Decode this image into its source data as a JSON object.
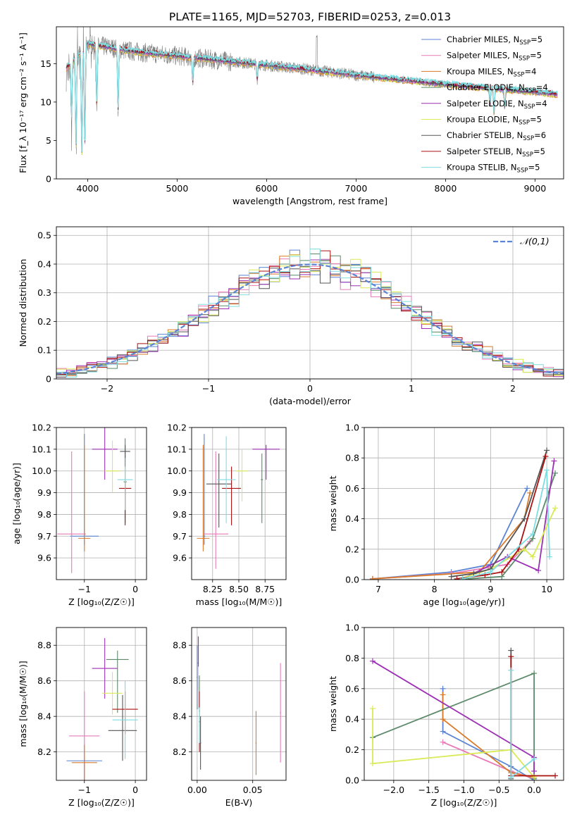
{
  "figure": {
    "title": "PLATE=1165, MJD=52703, FIBERID=0253, z=0.013"
  },
  "colors": [
    "#5b84d4",
    "#e87ab8",
    "#d97a2a",
    "#5c8a6a",
    "#9c2fb4",
    "#d9ea55",
    "#555555",
    "#aa1111",
    "#7fdce0"
  ],
  "chart_data": [
    {
      "id": "spectrum",
      "type": "line",
      "xlabel": "wavelength [Angstrom, rest frame]",
      "ylabel": "Flux [f_λ 10⁻¹⁷ erg cm⁻² s⁻¹ A⁻¹]",
      "xlim": [
        3650,
        9320
      ],
      "ylim": [
        0,
        19.8
      ],
      "xticks": [
        4000,
        5000,
        6000,
        7000,
        8000,
        9000
      ],
      "yticks": [
        0,
        5,
        10,
        15
      ],
      "grid": false,
      "legend_placement": "top-right",
      "legend": [
        {
          "name": "Chabrier MILES, N",
          "sub": "SSP",
          "tail": "=5"
        },
        {
          "name": "Salpeter MILES, N",
          "sub": "SSP",
          "tail": "=5"
        },
        {
          "name": "Kroupa MILES, N",
          "sub": "SSP",
          "tail": "=4"
        },
        {
          "name": "Chabrier ELODIE, N",
          "sub": "SSP",
          "tail": "=4"
        },
        {
          "name": "Salpeter ELODIE, N",
          "sub": "SSP",
          "tail": "=4"
        },
        {
          "name": "Kroupa ELODIE, N",
          "sub": "SSP",
          "tail": "=5"
        },
        {
          "name": "Chabrier STELIB, N",
          "sub": "SSP",
          "tail": "=6"
        },
        {
          "name": "Salpeter STELIB, N",
          "sub": "SSP",
          "tail": "=5"
        },
        {
          "name": "Kroupa STELIB, N",
          "sub": "SSP",
          "tail": "=5"
        }
      ],
      "continuum": [
        [
          3750,
          14.2
        ],
        [
          3900,
          16.2
        ],
        [
          4000,
          17.6
        ],
        [
          4200,
          17.2
        ],
        [
          4500,
          16.6
        ],
        [
          5000,
          16.0
        ],
        [
          5500,
          15.4
        ],
        [
          6000,
          14.8
        ],
        [
          6500,
          14.2
        ],
        [
          7000,
          13.5
        ],
        [
          7500,
          12.9
        ],
        [
          8000,
          12.3
        ],
        [
          8500,
          11.8
        ],
        [
          9000,
          11.3
        ],
        [
          9250,
          11.0
        ]
      ],
      "dips": [
        [
          3820,
          8.0
        ],
        [
          3870,
          4.5
        ],
        [
          3934,
          3.2
        ],
        [
          3968,
          4.3
        ],
        [
          4102,
          9.5
        ],
        [
          4340,
          9.0
        ],
        [
          5175,
          12.4
        ],
        [
          5895,
          13.0
        ],
        [
          8498,
          9.6
        ],
        [
          8542,
          8.5
        ],
        [
          8662,
          9.3
        ]
      ]
    },
    {
      "id": "residuals",
      "type": "histogram",
      "xlabel": "(data-model)/error",
      "ylabel": "Normed distribution",
      "xlim": [
        -2.5,
        2.5
      ],
      "ylim": [
        0,
        0.53
      ],
      "xticks": [
        -2,
        -1,
        0,
        1,
        2
      ],
      "yticks": [
        0,
        0.1,
        0.2,
        0.3,
        0.4,
        0.5
      ],
      "grid": true,
      "legend_placement": "top-right",
      "reference_curve": "𝒩(0,1)",
      "bin_width": 0.1
    },
    {
      "id": "age_vs_Z",
      "type": "errorbar",
      "xlabel": "Z [log₁₀(Z/Z☉)]",
      "ylabel": "age  [log₁₀(age/yr)]",
      "xlim": [
        -1.55,
        0.22
      ],
      "ylim": [
        9.5,
        10.2
      ],
      "xticks": [
        -1,
        0
      ],
      "yticks": [
        9.6,
        9.7,
        9.8,
        9.9,
        10.0,
        10.1,
        10.2
      ],
      "grid": true,
      "points": [
        [
          -1.0,
          9.7,
          0.28,
          0.04,
          0.47
        ],
        [
          -1.25,
          9.71,
          0.28,
          0.18,
          0.38
        ],
        [
          -1.0,
          9.69,
          0.12,
          0.06,
          0.43
        ],
        [
          -0.2,
          9.95,
          0.03,
          0.19,
          0.2
        ],
        [
          -0.6,
          10.1,
          0.25,
          0.14,
          0.14
        ],
        [
          -0.45,
          10.0,
          0.15,
          0.1,
          0.14
        ],
        [
          -0.2,
          10.09,
          0.1,
          0.03,
          0.03
        ],
        [
          -0.2,
          9.92,
          0.12,
          0.17,
          0.03
        ],
        [
          -0.2,
          9.96,
          0.15,
          0.14,
          0.06
        ]
      ]
    },
    {
      "id": "age_vs_mass",
      "type": "errorbar",
      "xlabel": "mass [log₁₀(M/M☉)]",
      "ylabel": "",
      "xlim": [
        8.05,
        8.95
      ],
      "ylim": [
        9.5,
        10.2
      ],
      "xticks": [
        8.25,
        8.5,
        8.75
      ],
      "xtick_labels": [
        "8.25",
        "8.50",
        "8.75"
      ],
      "yticks": [
        9.6,
        9.7,
        9.8,
        9.9,
        10.0,
        10.1,
        10.2
      ],
      "grid": true,
      "points": [
        [
          8.17,
          9.7,
          0.01,
          0.04,
          0.47
        ],
        [
          8.28,
          9.71,
          0.12,
          0.16,
          0.38
        ],
        [
          8.16,
          9.69,
          0.06,
          0.06,
          0.43
        ],
        [
          8.72,
          9.96,
          0.01,
          0.2,
          0.12
        ],
        [
          8.76,
          10.1,
          0.13,
          0.14,
          0.02
        ],
        [
          8.53,
          10.0,
          0.06,
          0.14,
          0.1
        ],
        [
          8.31,
          9.94,
          0.12,
          0.2,
          0.14
        ],
        [
          8.43,
          9.92,
          0.09,
          0.17,
          0.1
        ],
        [
          8.38,
          9.96,
          0.09,
          0.2,
          0.2
        ]
      ]
    },
    {
      "id": "weight_vs_age",
      "type": "line",
      "xlabel": "age  [log₁₀(age/yr)]",
      "ylabel": "mass weight",
      "xlim": [
        6.75,
        10.3
      ],
      "ylim": [
        0,
        1.0
      ],
      "xticks": [
        7,
        8,
        9,
        10
      ],
      "yticks": [
        0,
        0.2,
        0.4,
        0.6,
        0.8,
        1.0
      ],
      "grid": true,
      "series": [
        {
          "points": [
            [
              6.9,
              0.005
            ],
            [
              8.3,
              0.05
            ],
            [
              9.0,
              0.1
            ],
            [
              9.65,
              0.6
            ]
          ]
        },
        {
          "points": [
            [
              6.9,
              0.005
            ],
            [
              8.3,
              0.04
            ],
            [
              9.3,
              0.1
            ],
            [
              9.7,
              0.25
            ]
          ]
        },
        {
          "points": [
            [
              6.9,
              0.005
            ],
            [
              8.8,
              0.05
            ],
            [
              9.6,
              0.4
            ],
            [
              9.7,
              0.57
            ]
          ]
        },
        {
          "points": [
            [
              8.6,
              0.005
            ],
            [
              9.2,
              0.02
            ],
            [
              9.75,
              0.27
            ],
            [
              10.15,
              0.7
            ]
          ]
        },
        {
          "points": [
            [
              8.5,
              0.005
            ],
            [
              9.3,
              0.15
            ],
            [
              9.85,
              0.06
            ],
            [
              10.13,
              0.78
            ]
          ]
        },
        {
          "points": [
            [
              8.5,
              0.01
            ],
            [
              9.0,
              0.07
            ],
            [
              9.6,
              0.2
            ],
            [
              9.75,
              0.15
            ],
            [
              10.15,
              0.47
            ]
          ]
        },
        {
          "points": [
            [
              8.3,
              0.02
            ],
            [
              8.7,
              0.04
            ],
            [
              9.0,
              0.07
            ],
            [
              9.6,
              0.4
            ],
            [
              10.0,
              0.85
            ]
          ]
        },
        {
          "points": [
            [
              8.4,
              0.005
            ],
            [
              8.9,
              0.03
            ],
            [
              9.2,
              0.05
            ],
            [
              9.5,
              0.2
            ],
            [
              9.98,
              0.81
            ]
          ]
        },
        {
          "points": [
            [
              8.5,
              0.005
            ],
            [
              9.0,
              0.05
            ],
            [
              9.75,
              0.3
            ],
            [
              10.0,
              0.72
            ],
            [
              10.05,
              0.15
            ]
          ]
        }
      ]
    },
    {
      "id": "mass_vs_Z",
      "type": "errorbar",
      "xlabel": "Z [log₁₀(Z/Z☉)]",
      "ylabel": "mass [log₁₀(M/M☉)]",
      "xlim": [
        -1.55,
        0.22
      ],
      "ylim": [
        8.04,
        8.9
      ],
      "xticks": [
        -1,
        0
      ],
      "yticks": [
        8.2,
        8.4,
        8.6,
        8.8
      ],
      "grid": true,
      "points": [
        [
          -1.0,
          8.15,
          0.35,
          0.45,
          0.01
        ],
        [
          -1.0,
          8.29,
          0.3,
          0.25,
          0.25
        ],
        [
          -1.0,
          8.14,
          0.25,
          0.29,
          0.1
        ],
        [
          -0.35,
          8.72,
          0.22,
          0.3,
          0.05
        ],
        [
          -0.6,
          8.67,
          0.25,
          0.17,
          0.17
        ],
        [
          -0.45,
          8.53,
          0.2,
          0.12,
          0.12
        ],
        [
          -0.25,
          8.32,
          0.28,
          0.17,
          0.2
        ],
        [
          -0.2,
          8.44,
          0.25,
          0.14,
          0.1
        ],
        [
          -0.2,
          8.38,
          0.25,
          0.22,
          0.22
        ]
      ]
    },
    {
      "id": "mass_vs_EBV",
      "type": "errorbar",
      "xlabel": "E(B-V)",
      "ylabel": "",
      "xlim": [
        -0.005,
        0.08
      ],
      "ylim": [
        8.04,
        8.9
      ],
      "xticks": [
        0.0,
        0.05
      ],
      "xtick_labels": [
        "0.00",
        "0.05"
      ],
      "yticks": [
        8.2,
        8.4,
        8.6,
        8.8
      ],
      "grid": true,
      "points": [
        [
          0.0,
          8.62,
          0.0005,
          0.18,
          0.18
        ],
        [
          0.075,
          8.42,
          0.0005,
          0.28,
          0.28
        ],
        [
          0.053,
          8.25,
          0.0005,
          0.18,
          0.18
        ],
        [
          0.002,
          8.43,
          0.0005,
          0.2,
          0.2
        ],
        [
          0.001,
          8.7,
          0.0005,
          0.15,
          0.15
        ],
        [
          0.001,
          8.56,
          0.0005,
          0.12,
          0.12
        ],
        [
          0.003,
          8.25,
          0.0005,
          0.15,
          0.15
        ],
        [
          0.002,
          8.37,
          0.0005,
          0.17,
          0.17
        ],
        [
          0.002,
          8.35,
          0.0005,
          0.1,
          0.1
        ]
      ]
    },
    {
      "id": "weight_vs_Z",
      "type": "line",
      "xlabel": "Z [log₁₀(Z/Z☉)]",
      "ylabel": "mass weight",
      "xlim": [
        -2.42,
        0.42
      ],
      "ylim": [
        0,
        1.0
      ],
      "xticks": [
        -2.0,
        -1.5,
        -1.0,
        -0.5,
        0.0
      ],
      "xtick_labels": [
        "−2.0",
        "−1.5",
        "−1.0",
        "−0.5",
        "0.0"
      ],
      "yticks": [
        0,
        0.2,
        0.4,
        0.6,
        0.8,
        1.0
      ],
      "grid": true,
      "series": [
        {
          "points": [
            [
              -1.3,
              0.6
            ],
            [
              -1.3,
              0.32
            ],
            [
              -0.33,
              0.09
            ],
            [
              0.0,
              0.0
            ]
          ]
        },
        {
          "points": [
            [
              -1.3,
              0.25
            ],
            [
              -0.33,
              0.06
            ],
            [
              0.0,
              0.01
            ]
          ]
        },
        {
          "points": [
            [
              -1.3,
              0.56
            ],
            [
              -1.3,
              0.4
            ],
            [
              -0.33,
              0.05
            ],
            [
              0.0,
              0.02
            ]
          ]
        },
        {
          "points": [
            [
              -2.3,
              0.28
            ],
            [
              0.0,
              0.7
            ],
            [
              0.0,
              0.01
            ]
          ]
        },
        {
          "points": [
            [
              -2.3,
              0.78
            ],
            [
              0.0,
              0.15
            ],
            [
              0.0,
              0.06
            ]
          ]
        },
        {
          "points": [
            [
              -2.3,
              0.47
            ],
            [
              -2.3,
              0.11
            ],
            [
              -0.33,
              0.2
            ],
            [
              0.0,
              0.02
            ]
          ]
        },
        {
          "points": [
            [
              -0.33,
              0.85
            ],
            [
              -0.33,
              0.01
            ]
          ]
        },
        {
          "points": [
            [
              -0.33,
              0.81
            ],
            [
              -0.33,
              0.03
            ],
            [
              0.3,
              0.03
            ]
          ]
        },
        {
          "points": [
            [
              -0.33,
              0.72
            ],
            [
              -0.33,
              0.02
            ],
            [
              0.0,
              0.14
            ]
          ]
        }
      ]
    }
  ]
}
